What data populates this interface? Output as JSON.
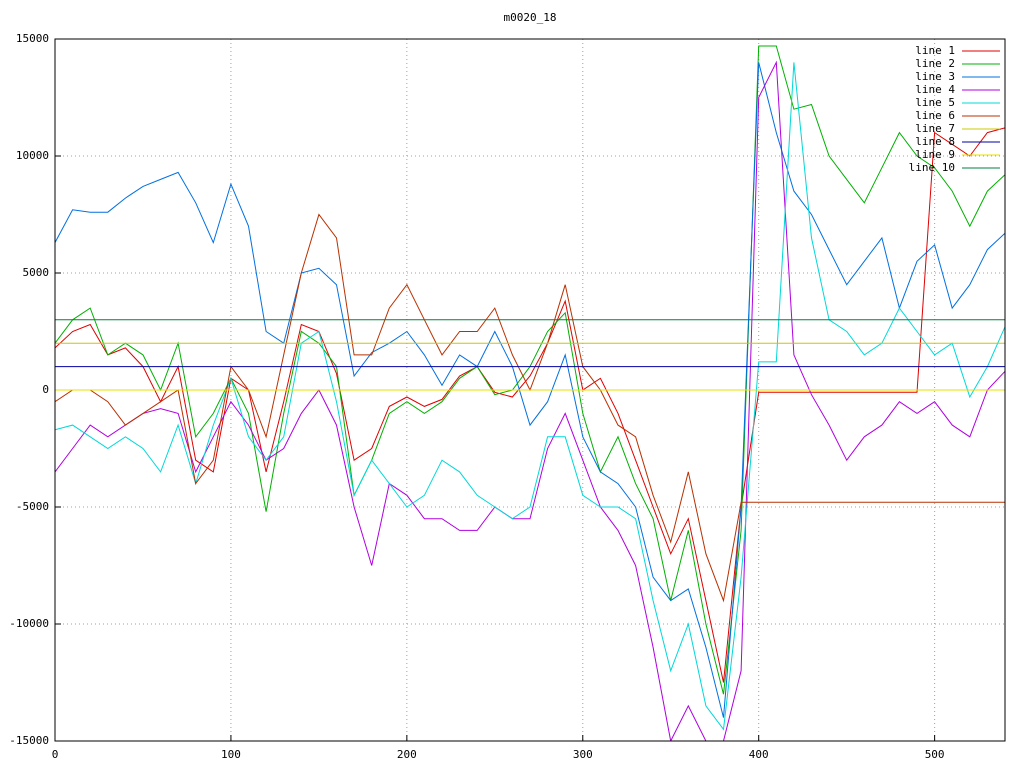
{
  "chart_data": {
    "type": "line",
    "title": "m0020_18",
    "xlim": [
      0,
      540
    ],
    "xticks": [
      0,
      100,
      200,
      300,
      400,
      500
    ],
    "ylim": [
      -15000,
      15000
    ],
    "yticks": [
      -15000,
      -10000,
      -5000,
      0,
      5000,
      10000,
      15000
    ],
    "grid": true,
    "legend": "top-right",
    "series": [
      {
        "name": "line 1",
        "color": "#e00000",
        "x": [
          0,
          10,
          20,
          30,
          40,
          50,
          60,
          70,
          80,
          90,
          100,
          110,
          120,
          130,
          140,
          150,
          160,
          170,
          180,
          190,
          200,
          210,
          220,
          230,
          240,
          250,
          260,
          270,
          280,
          290,
          300,
          310,
          320,
          330,
          340,
          350,
          360,
          370,
          380,
          390,
          400,
          410,
          420,
          430,
          440,
          450,
          460,
          470,
          480,
          490,
          500,
          510,
          520,
          530,
          540
        ],
        "values": [
          1800,
          2500,
          2800,
          1500,
          1800,
          1000,
          -500,
          1000,
          -3000,
          -3500,
          500,
          0,
          -3500,
          -500,
          2800,
          2500,
          700,
          -3000,
          -2500,
          -700,
          -300,
          -700,
          -400,
          600,
          1000,
          -100,
          -300,
          600,
          2000,
          3800,
          0,
          500,
          -1000,
          -3000,
          -5000,
          -7000,
          -5500,
          -9000,
          -12500,
          -5000,
          -100,
          -100,
          -100,
          -100,
          -100,
          -100,
          -100,
          -100,
          -100,
          -100,
          11000,
          10500,
          10000,
          11000,
          11200
        ]
      },
      {
        "name": "line 2",
        "color": "#00b000",
        "x": [
          0,
          10,
          20,
          30,
          40,
          50,
          60,
          70,
          80,
          90,
          100,
          110,
          120,
          130,
          140,
          150,
          160,
          170,
          180,
          190,
          200,
          210,
          220,
          230,
          240,
          250,
          260,
          270,
          280,
          290,
          300,
          310,
          320,
          330,
          340,
          350,
          360,
          370,
          380,
          390,
          400,
          410,
          420,
          430,
          440,
          450,
          460,
          470,
          480,
          490,
          500,
          510,
          520,
          530,
          540
        ],
        "values": [
          2000,
          3000,
          3500,
          1500,
          2000,
          1500,
          0,
          2000,
          -2000,
          -1000,
          500,
          -1000,
          -5200,
          -1000,
          2500,
          2000,
          1000,
          -4500,
          -3000,
          -1000,
          -500,
          -1000,
          -500,
          500,
          1000,
          -200,
          0,
          1000,
          2500,
          3300,
          -1000,
          -3500,
          -2000,
          -4000,
          -5500,
          -9000,
          -6000,
          -10000,
          -13000,
          -6000,
          14700,
          14700,
          12000,
          12200,
          10000,
          9000,
          8000,
          9500,
          11000,
          10000,
          9500,
          8500,
          7000,
          8500,
          9200
        ]
      },
      {
        "name": "line 3",
        "color": "#0070e0",
        "x": [
          0,
          10,
          20,
          30,
          40,
          50,
          60,
          70,
          80,
          90,
          100,
          110,
          120,
          130,
          140,
          150,
          160,
          170,
          180,
          190,
          200,
          210,
          220,
          230,
          240,
          250,
          260,
          270,
          280,
          290,
          300,
          310,
          320,
          330,
          340,
          350,
          360,
          370,
          380,
          390,
          400,
          410,
          420,
          430,
          440,
          450,
          460,
          470,
          480,
          490,
          500,
          510,
          520,
          530,
          540
        ],
        "values": [
          6300,
          7700,
          7600,
          7600,
          8200,
          8700,
          9000,
          9300,
          8000,
          6300,
          8800,
          7000,
          2500,
          2000,
          5000,
          5200,
          4500,
          600,
          1600,
          2000,
          2500,
          1500,
          200,
          1500,
          1000,
          2500,
          1000,
          -1500,
          -500,
          1500,
          -2000,
          -3500,
          -4000,
          -5000,
          -8000,
          -9000,
          -8500,
          -11000,
          -14000,
          -5000,
          14000,
          11000,
          8500,
          7500,
          6000,
          4500,
          5500,
          6500,
          3500,
          5500,
          6200,
          3500,
          4500,
          6000,
          6700
        ]
      },
      {
        "name": "line 4",
        "color": "#b000e0",
        "x": [
          0,
          10,
          20,
          30,
          40,
          50,
          60,
          70,
          80,
          90,
          100,
          110,
          120,
          130,
          140,
          150,
          160,
          170,
          180,
          190,
          200,
          210,
          220,
          230,
          240,
          250,
          260,
          270,
          280,
          290,
          300,
          310,
          320,
          330,
          340,
          350,
          360,
          370,
          380,
          390,
          400,
          410,
          420,
          430,
          440,
          450,
          460,
          470,
          480,
          490,
          500,
          510,
          520,
          530,
          540
        ],
        "values": [
          -3500,
          -2500,
          -1500,
          -2000,
          -1500,
          -1000,
          -800,
          -1000,
          -3500,
          -2000,
          -500,
          -1500,
          -3000,
          -2500,
          -1000,
          0,
          -1500,
          -5000,
          -7500,
          -4000,
          -4500,
          -5500,
          -5500,
          -6000,
          -6000,
          -5000,
          -5500,
          -5500,
          -2500,
          -1000,
          -3000,
          -5000,
          -6000,
          -7500,
          -11000,
          -15000,
          -13500,
          -15000,
          -15000,
          -12000,
          12500,
          14000,
          1500,
          -200,
          -1500,
          -3000,
          -2000,
          -1500,
          -500,
          -1000,
          -500,
          -1500,
          -2000,
          0,
          800
        ]
      },
      {
        "name": "line 5",
        "color": "#00d8d8",
        "x": [
          0,
          10,
          20,
          30,
          40,
          50,
          60,
          70,
          80,
          90,
          100,
          110,
          120,
          130,
          140,
          150,
          160,
          170,
          180,
          190,
          200,
          210,
          220,
          230,
          240,
          250,
          260,
          270,
          280,
          290,
          300,
          310,
          320,
          330,
          340,
          350,
          360,
          370,
          380,
          390,
          400,
          410,
          420,
          430,
          440,
          450,
          460,
          470,
          480,
          490,
          500,
          510,
          520,
          530,
          540
        ],
        "values": [
          -1700,
          -1500,
          -2000,
          -2500,
          -2000,
          -2500,
          -3500,
          -1500,
          -4000,
          -1500,
          500,
          -2000,
          -3000,
          -2000,
          2000,
          2500,
          -500,
          -4500,
          -3000,
          -4000,
          -5000,
          -4500,
          -3000,
          -3500,
          -4500,
          -5000,
          -5500,
          -5000,
          -2000,
          -2000,
          -4500,
          -5000,
          -5000,
          -5500,
          -9000,
          -12000,
          -10000,
          -13500,
          -14500,
          -8000,
          1200,
          1200,
          14000,
          6500,
          3000,
          2500,
          1500,
          2000,
          3500,
          2500,
          1500,
          2000,
          -300,
          1000,
          2700
        ]
      },
      {
        "name": "line 6",
        "color": "#b83000",
        "x": [
          0,
          10,
          20,
          30,
          40,
          50,
          60,
          70,
          80,
          90,
          100,
          110,
          120,
          130,
          140,
          150,
          160,
          170,
          180,
          190,
          200,
          210,
          220,
          230,
          240,
          250,
          260,
          270,
          280,
          290,
          300,
          310,
          320,
          330,
          340,
          350,
          360,
          370,
          380,
          390,
          400,
          410,
          420,
          430,
          440,
          450,
          460,
          470,
          480,
          490,
          500,
          510,
          520,
          530,
          540
        ],
        "values": [
          -500,
          0,
          0,
          -500,
          -1500,
          -1000,
          -500,
          0,
          -4000,
          -3000,
          1000,
          0,
          -2000,
          1500,
          5000,
          7500,
          6500,
          1500,
          1500,
          3500,
          4500,
          3000,
          1500,
          2500,
          2500,
          3500,
          1500,
          0,
          2000,
          4500,
          1000,
          0,
          -1500,
          -2000,
          -4500,
          -6500,
          -3500,
          -7000,
          -9000,
          -4800,
          -4800,
          -4800,
          -4800,
          -4800,
          -4800,
          -4800,
          -4800,
          -4800,
          -4800,
          -4800,
          -4800,
          -4800,
          -4800,
          -4800,
          -4800
        ]
      },
      {
        "name": "line 7",
        "color": "#c8c800",
        "x": [
          0,
          540
        ],
        "values": [
          2000,
          2000
        ]
      },
      {
        "name": "line 8",
        "color": "#0000a0",
        "x": [
          0,
          540
        ],
        "values": [
          1000,
          1000
        ]
      },
      {
        "name": "line 9",
        "color": "#e8e000",
        "x": [
          0,
          540
        ],
        "values": [
          0,
          0
        ]
      },
      {
        "name": "line 10",
        "color": "#008040",
        "x": [
          0,
          540
        ],
        "values": [
          3000,
          3000
        ]
      }
    ]
  }
}
